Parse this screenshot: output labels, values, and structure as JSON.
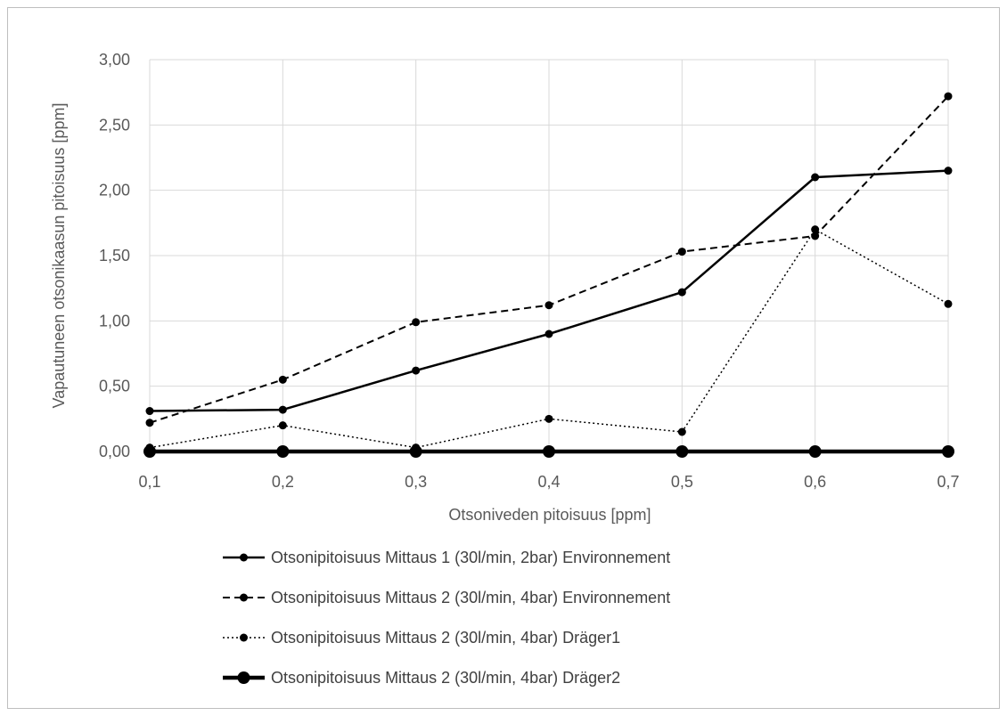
{
  "chart_data": {
    "type": "line",
    "title": "",
    "xlabel": "Otsoniveden pitoisuus [ppm]",
    "ylabel": "Vapautuneen otsonikaasun pitoisuus [ppm]",
    "categories": [
      "0,1",
      "0,2",
      "0,3",
      "0,4",
      "0,5",
      "0,6",
      "0,7"
    ],
    "y_ticks": [
      "0,00",
      "0,50",
      "1,00",
      "1,50",
      "2,00",
      "2,50",
      "3,00"
    ],
    "ylim": [
      0,
      3
    ],
    "grid": true,
    "legend_position": "bottom",
    "series": [
      {
        "name": "Otsonipitoisuus Mittaus 1 (30l/min, 2bar) Environnement",
        "style": "solid",
        "values": [
          0.31,
          0.32,
          0.62,
          0.9,
          1.22,
          2.1,
          2.15
        ]
      },
      {
        "name": "Otsonipitoisuus Mittaus 2 (30l/min, 4bar) Environnement",
        "style": "dashed",
        "values": [
          0.22,
          0.55,
          0.99,
          1.12,
          1.53,
          1.65,
          2.72
        ]
      },
      {
        "name": "Otsonipitoisuus Mittaus 2 (30l/min, 4bar) Dräger1",
        "style": "dotted",
        "values": [
          0.03,
          0.2,
          0.03,
          0.25,
          0.15,
          1.7,
          1.13
        ]
      },
      {
        "name": "Otsonipitoisuus Mittaus 2 (30l/min, 4bar) Dräger2",
        "style": "thick",
        "values": [
          0,
          0,
          0,
          0,
          0,
          0,
          0
        ]
      }
    ]
  }
}
